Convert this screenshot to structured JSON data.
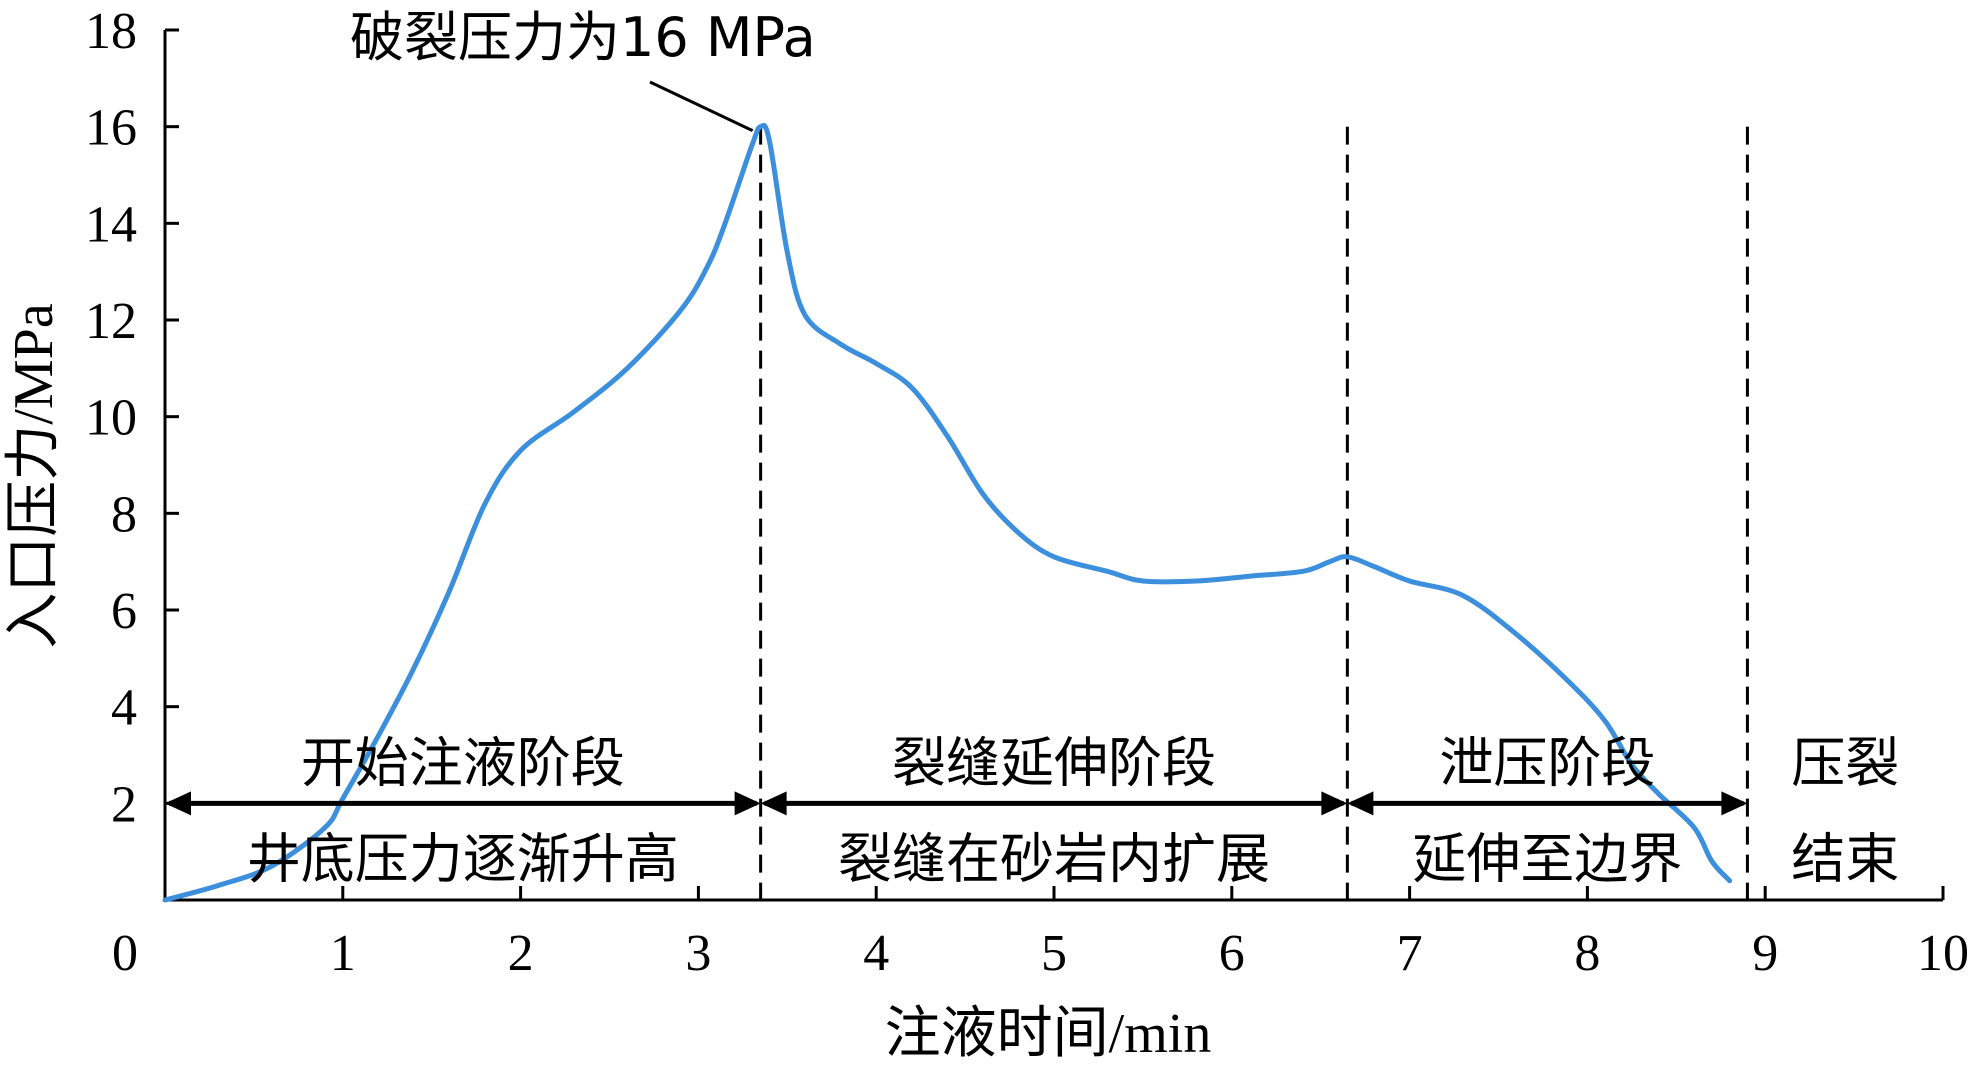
{
  "chart_data": {
    "type": "line",
    "xlabel": "注液时间/min",
    "ylabel": "入口压力/MPa",
    "xlim": [
      0,
      10
    ],
    "ylim": [
      0,
      18
    ],
    "x_ticks": [
      "0",
      "1",
      "2",
      "3",
      "4",
      "5",
      "6",
      "7",
      "8",
      "9",
      "10"
    ],
    "y_ticks": [
      "2",
      "4",
      "6",
      "8",
      "10",
      "12",
      "14",
      "16",
      "18"
    ],
    "grid": false,
    "line_color": "#3c8fdc",
    "series": [
      {
        "points": [
          [
            0,
            0
          ],
          [
            0.3,
            0.3
          ],
          [
            0.6,
            0.7
          ],
          [
            0.9,
            1.5
          ],
          [
            1.0,
            2.1
          ],
          [
            1.2,
            3.4
          ],
          [
            1.4,
            4.8
          ],
          [
            1.6,
            6.4
          ],
          [
            1.8,
            8.2
          ],
          [
            2.0,
            9.3
          ],
          [
            2.3,
            10.1
          ],
          [
            2.6,
            11.0
          ],
          [
            2.9,
            12.2
          ],
          [
            3.05,
            13.1
          ],
          [
            3.15,
            14.0
          ],
          [
            3.3,
            15.6
          ],
          [
            3.35,
            16.0
          ],
          [
            3.4,
            15.7
          ],
          [
            3.5,
            13.4
          ],
          [
            3.6,
            12.1
          ],
          [
            3.8,
            11.5
          ],
          [
            4.0,
            11.1
          ],
          [
            4.2,
            10.6
          ],
          [
            4.4,
            9.6
          ],
          [
            4.6,
            8.4
          ],
          [
            4.8,
            7.6
          ],
          [
            5.0,
            7.1
          ],
          [
            5.3,
            6.8
          ],
          [
            5.5,
            6.6
          ],
          [
            5.8,
            6.6
          ],
          [
            6.1,
            6.7
          ],
          [
            6.4,
            6.8
          ],
          [
            6.55,
            7.0
          ],
          [
            6.65,
            7.1
          ],
          [
            6.8,
            6.9
          ],
          [
            7.0,
            6.6
          ],
          [
            7.3,
            6.3
          ],
          [
            7.6,
            5.5
          ],
          [
            7.9,
            4.5
          ],
          [
            8.1,
            3.7
          ],
          [
            8.25,
            2.8
          ],
          [
            8.4,
            2.2
          ],
          [
            8.6,
            1.5
          ],
          [
            8.7,
            0.8
          ],
          [
            8.8,
            0.4
          ]
        ]
      }
    ],
    "vlines": [
      3.35,
      6.65,
      8.9
    ],
    "peak": {
      "x": 3.35,
      "y": 16.0
    },
    "annotation": "破裂压力为16 MPa",
    "stage_arrow_y": 2,
    "stages": [
      {
        "x_start": 0,
        "x_end": 3.35,
        "top": "开始注液阶段",
        "bottom": "井底压力逐渐升高"
      },
      {
        "x_start": 3.35,
        "x_end": 6.65,
        "top": "裂缝延伸阶段",
        "bottom": "裂缝在砂岩内扩展"
      },
      {
        "x_start": 6.65,
        "x_end": 8.9,
        "top": "泄压阶段",
        "bottom": "延伸至边界"
      },
      {
        "x_start": 8.9,
        "x_end": 10,
        "top": "压裂",
        "bottom": "结束"
      }
    ]
  }
}
